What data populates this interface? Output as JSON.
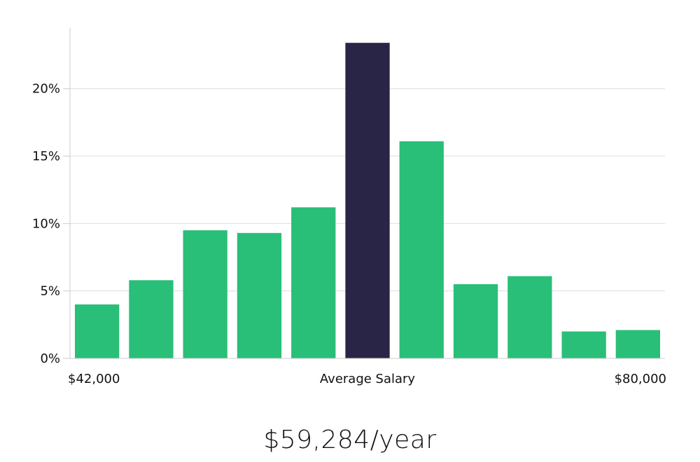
{
  "chart_data": {
    "type": "bar",
    "categories": [
      "1",
      "2",
      "3",
      "4",
      "5",
      "6",
      "7",
      "8",
      "9",
      "10",
      "11"
    ],
    "values": [
      4.0,
      5.8,
      9.5,
      9.3,
      11.2,
      23.4,
      16.1,
      5.5,
      6.1,
      2.0,
      2.1
    ],
    "highlight_index": 5,
    "ylim": [
      0,
      24.5
    ],
    "yticks": [
      0,
      5,
      10,
      15,
      20
    ],
    "ytick_labels": [
      "0%",
      "5%",
      "10%",
      "15%",
      "20%"
    ],
    "x_labels": {
      "left": "$42,000",
      "center": "Average Salary",
      "right": "$80,000"
    },
    "grid": true,
    "colors": {
      "bar": "#29bf78",
      "highlight": "#292546",
      "grid": "#dddddd",
      "axis": "#cccccc"
    }
  },
  "caption": "$59,284/year"
}
